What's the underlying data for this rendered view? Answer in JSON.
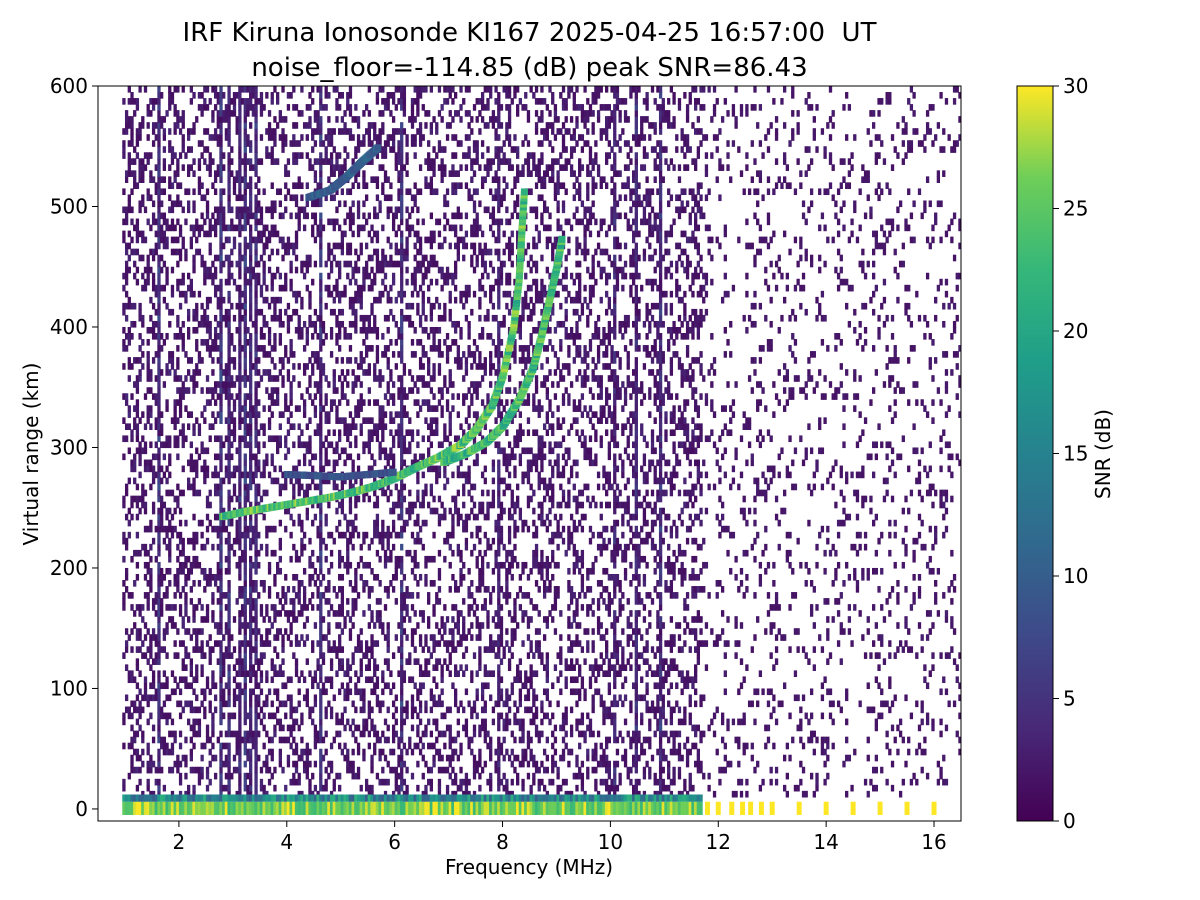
{
  "chart_data": {
    "type": "heatmap",
    "title": "IRF Kiruna Ionosonde KI167 2025-04-25 16:57:00  UT",
    "subtitle": "noise_floor=-114.85 (dB) peak SNR=86.43",
    "xlabel": "Frequency (MHz)",
    "ylabel": "Virtual range (km)",
    "xlim": [
      0.5,
      16.5
    ],
    "ylim": [
      -10,
      600
    ],
    "xticks": [
      2,
      4,
      6,
      8,
      10,
      12,
      14,
      16
    ],
    "yticks": [
      0,
      100,
      200,
      300,
      400,
      500,
      600
    ],
    "colorbar": {
      "label": "SNR (dB)",
      "range": [
        0,
        30
      ],
      "ticks": [
        0,
        5,
        10,
        15,
        20,
        25,
        30
      ],
      "colormap": "viridis"
    },
    "colors": {
      "low": "#440154",
      "high": "#fde725"
    },
    "traces": [
      {
        "points": [
          [
            2.8,
            243
          ],
          [
            3.2,
            247
          ],
          [
            3.6,
            250
          ],
          [
            4.0,
            253
          ],
          [
            4.4,
            256
          ],
          [
            4.8,
            259
          ],
          [
            5.2,
            263
          ],
          [
            5.6,
            268
          ],
          [
            6.0,
            275
          ],
          [
            6.4,
            284
          ],
          [
            6.8,
            292
          ],
          [
            7.2,
            302
          ],
          [
            7.5,
            315
          ],
          [
            7.8,
            335
          ],
          [
            8.0,
            360
          ],
          [
            8.2,
            400
          ],
          [
            8.3,
            440
          ],
          [
            8.35,
            480
          ],
          [
            8.4,
            515
          ]
        ],
        "snr": 28
      },
      {
        "points": [
          [
            6.9,
            288
          ],
          [
            7.3,
            295
          ],
          [
            7.7,
            305
          ],
          [
            8.0,
            318
          ],
          [
            8.3,
            340
          ],
          [
            8.55,
            365
          ],
          [
            8.7,
            390
          ],
          [
            8.85,
            420
          ],
          [
            9.0,
            450
          ],
          [
            9.1,
            475
          ]
        ],
        "snr": 27
      },
      {
        "points": [
          [
            4.4,
            508
          ],
          [
            4.8,
            514
          ],
          [
            5.1,
            525
          ],
          [
            5.4,
            538
          ],
          [
            5.7,
            550
          ]
        ],
        "snr": 12
      },
      {
        "points": [
          [
            4.0,
            278
          ],
          [
            4.5,
            277
          ],
          [
            5.0,
            276
          ],
          [
            5.5,
            278
          ],
          [
            6.0,
            280
          ]
        ],
        "snr": 10
      }
    ],
    "ground_band": {
      "range_km": [
        -5,
        6
      ],
      "continuous_until_mhz": 11.7,
      "snr": 30,
      "discrete_freqs": [
        11.8,
        12.0,
        12.25,
        12.45,
        12.6,
        12.8,
        13.0,
        13.5,
        14.0,
        14.5,
        15.0,
        15.5,
        16.0
      ]
    }
  }
}
